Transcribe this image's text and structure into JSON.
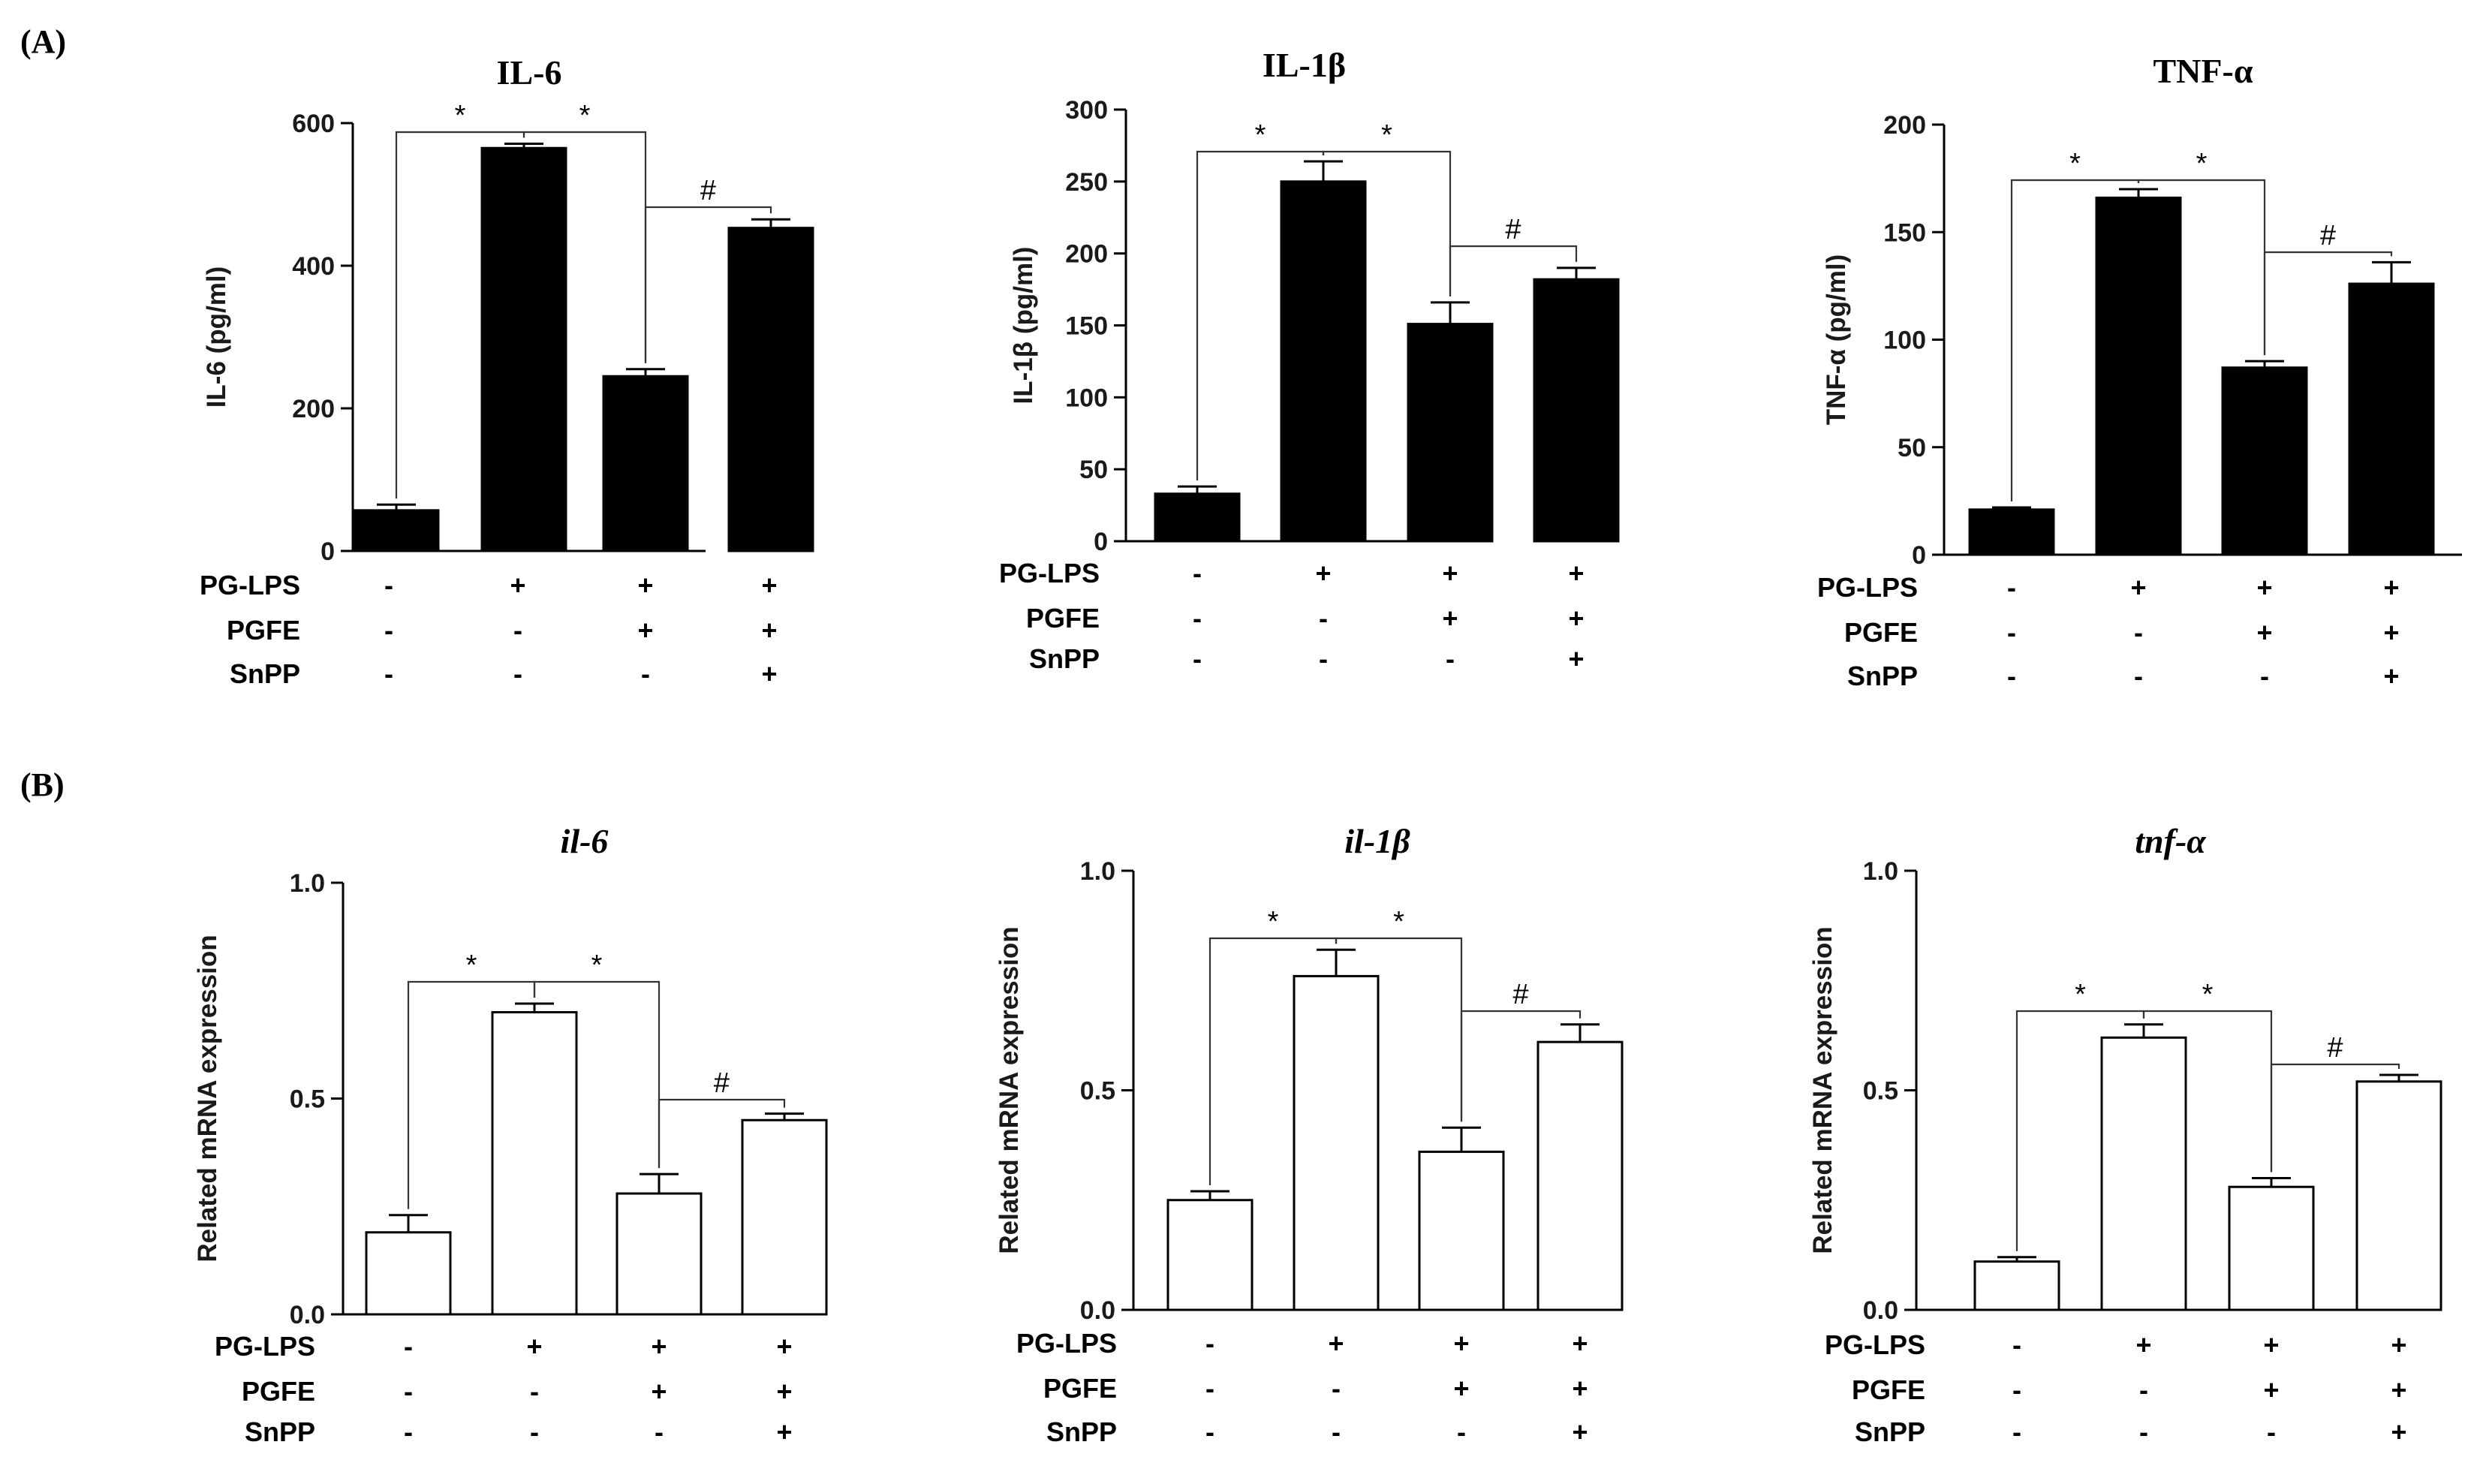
{
  "panels": {
    "a": "(A)",
    "b": "(B)"
  },
  "chart_data": [
    {
      "id": "il6-protein",
      "type": "bar",
      "panel": "A",
      "title": "IL-6",
      "title_italic": false,
      "ylabel": "IL-6 (pg/ml)",
      "ylim": [
        0,
        600
      ],
      "yticks": [
        0,
        200,
        400,
        600
      ],
      "ytick_labels": [
        "0",
        "200",
        "400",
        "600"
      ],
      "bar_fill": "#000000",
      "values": [
        57,
        565,
        245,
        453
      ],
      "errors": [
        8,
        6,
        10,
        12
      ],
      "row_labels": [
        "PG-LPS",
        "PGFE",
        "SnPP"
      ],
      "conditions": [
        [
          "-",
          "+",
          "+",
          "+"
        ],
        [
          "-",
          "-",
          "+",
          "+"
        ],
        [
          "-",
          "-",
          "-",
          "+"
        ]
      ],
      "brackets": [
        {
          "from": 0,
          "to": 1,
          "label": "*"
        },
        {
          "from": 1,
          "to": 2,
          "label": "*"
        },
        {
          "from": 2,
          "to": 3,
          "label": "#"
        }
      ]
    },
    {
      "id": "il1b-protein",
      "type": "bar",
      "panel": "A",
      "title": "IL-1β",
      "title_italic": false,
      "ylabel": "IL-1β (pg/ml)",
      "ylim": [
        0,
        300
      ],
      "yticks": [
        0,
        50,
        100,
        150,
        200,
        250,
        300
      ],
      "ytick_labels": [
        "0",
        "50",
        "100",
        "150",
        "200",
        "250",
        "300"
      ],
      "bar_fill": "#000000",
      "values": [
        33,
        250,
        151,
        182
      ],
      "errors": [
        5,
        14,
        15,
        8
      ],
      "row_labels": [
        "PG-LPS",
        "PGFE",
        "SnPP"
      ],
      "conditions": [
        [
          "-",
          "+",
          "+",
          "+"
        ],
        [
          "-",
          "-",
          "+",
          "+"
        ],
        [
          "-",
          "-",
          "-",
          "+"
        ]
      ],
      "brackets": [
        {
          "from": 0,
          "to": 1,
          "label": "*"
        },
        {
          "from": 1,
          "to": 2,
          "label": "*"
        },
        {
          "from": 2,
          "to": 3,
          "label": "#"
        }
      ]
    },
    {
      "id": "tnfa-protein",
      "type": "bar",
      "panel": "A",
      "title": "TNF-α",
      "title_italic": false,
      "ylabel": "TNF-α (pg/ml)",
      "ylim": [
        0,
        200
      ],
      "yticks": [
        0,
        50,
        100,
        150,
        200
      ],
      "ytick_labels": [
        "0",
        "50",
        "100",
        "150",
        "200"
      ],
      "bar_fill": "#000000",
      "values": [
        21,
        166,
        87,
        126
      ],
      "errors": [
        1,
        4,
        3,
        10
      ],
      "row_labels": [
        "PG-LPS",
        "PGFE",
        "SnPP"
      ],
      "conditions": [
        [
          "-",
          "+",
          "+",
          "+"
        ],
        [
          "-",
          "-",
          "+",
          "+"
        ],
        [
          "-",
          "-",
          "-",
          "+"
        ]
      ],
      "brackets": [
        {
          "from": 0,
          "to": 1,
          "label": "*"
        },
        {
          "from": 1,
          "to": 2,
          "label": "*"
        },
        {
          "from": 2,
          "to": 3,
          "label": "#"
        }
      ]
    },
    {
      "id": "il6-mrna",
      "type": "bar",
      "panel": "B",
      "title": "il-6",
      "title_italic": true,
      "ylabel": "Related mRNA expression",
      "ylim": [
        0,
        1.0
      ],
      "yticks": [
        0,
        0.5,
        1.0
      ],
      "ytick_labels": [
        "0.0",
        "0.5",
        "1.0"
      ],
      "bar_fill": "#ffffff",
      "values": [
        0.19,
        0.7,
        0.28,
        0.45
      ],
      "errors": [
        0.04,
        0.02,
        0.045,
        0.015
      ],
      "row_labels": [
        "PG-LPS",
        "PGFE",
        "SnPP"
      ],
      "conditions": [
        [
          "-",
          "+",
          "+",
          "+"
        ],
        [
          "-",
          "-",
          "+",
          "+"
        ],
        [
          "-",
          "-",
          "-",
          "+"
        ]
      ],
      "brackets": [
        {
          "from": 0,
          "to": 1,
          "label": "*"
        },
        {
          "from": 1,
          "to": 2,
          "label": "*"
        },
        {
          "from": 2,
          "to": 3,
          "label": "#"
        }
      ]
    },
    {
      "id": "il1b-mrna",
      "type": "bar",
      "panel": "B",
      "title": "il-1β",
      "title_italic": true,
      "ylabel": "Related mRNA expression",
      "ylim": [
        0,
        1.0
      ],
      "yticks": [
        0,
        0.5,
        1.0
      ],
      "ytick_labels": [
        "0.0",
        "0.5",
        "1.0"
      ],
      "bar_fill": "#ffffff",
      "values": [
        0.25,
        0.76,
        0.36,
        0.61
      ],
      "errors": [
        0.02,
        0.06,
        0.055,
        0.04
      ],
      "row_labels": [
        "PG-LPS",
        "PGFE",
        "SnPP"
      ],
      "conditions": [
        [
          "-",
          "+",
          "+",
          "+"
        ],
        [
          "-",
          "-",
          "+",
          "+"
        ],
        [
          "-",
          "-",
          "-",
          "+"
        ]
      ],
      "brackets": [
        {
          "from": 0,
          "to": 1,
          "label": "*"
        },
        {
          "from": 1,
          "to": 2,
          "label": "*"
        },
        {
          "from": 2,
          "to": 3,
          "label": "#"
        }
      ]
    },
    {
      "id": "tnfa-mrna",
      "type": "bar",
      "panel": "B",
      "title": "tnf-α",
      "title_italic": true,
      "ylabel": "Related mRNA expression",
      "ylim": [
        0,
        1.0
      ],
      "yticks": [
        0,
        0.5,
        1.0
      ],
      "ytick_labels": [
        "0.0",
        "0.5",
        "1.0"
      ],
      "bar_fill": "#ffffff",
      "values": [
        0.11,
        0.62,
        0.28,
        0.52
      ],
      "errors": [
        0.01,
        0.03,
        0.02,
        0.015
      ],
      "row_labels": [
        "PG-LPS",
        "PGFE",
        "SnPP"
      ],
      "conditions": [
        [
          "-",
          "+",
          "+",
          "+"
        ],
        [
          "-",
          "-",
          "+",
          "+"
        ],
        [
          "-",
          "-",
          "-",
          "+"
        ]
      ],
      "brackets": [
        {
          "from": 0,
          "to": 1,
          "label": "*"
        },
        {
          "from": 1,
          "to": 2,
          "label": "*"
        },
        {
          "from": 2,
          "to": 3,
          "label": "#"
        }
      ]
    }
  ]
}
